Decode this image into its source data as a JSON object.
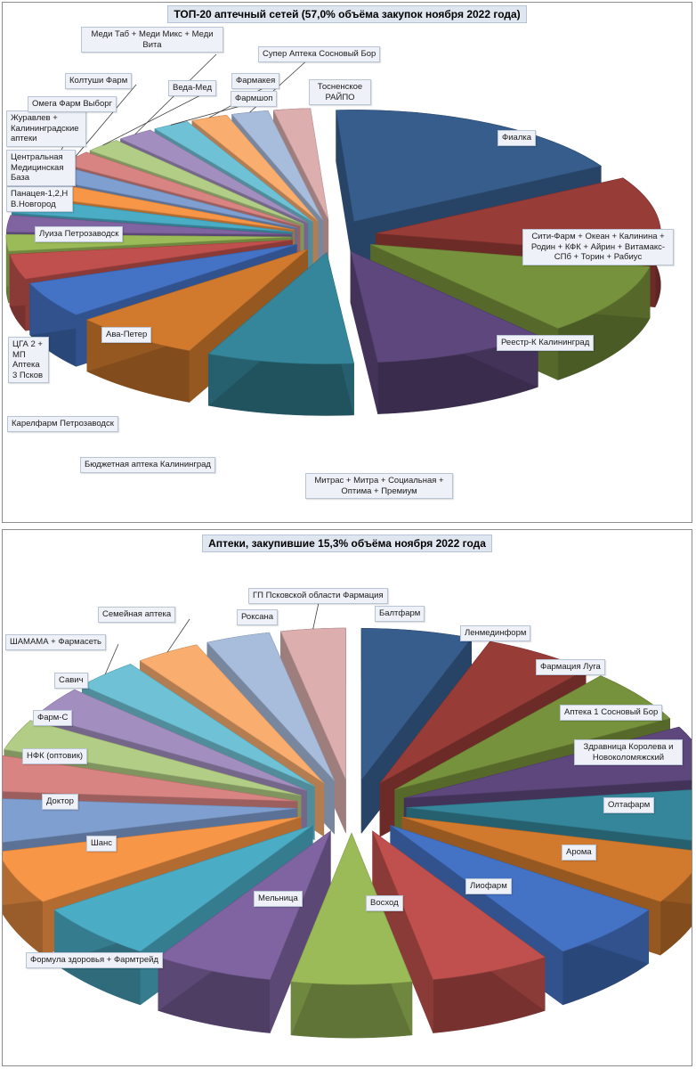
{
  "charts": [
    {
      "title": "ТОП-20 аптечный сетей (57,0% объёма закупок ноября 2022 года)",
      "chart_data": {
        "type": "pie",
        "style": "3d-exploded",
        "slices": [
          {
            "label": "Фиалка",
            "value": 17.0,
            "color": "#365d8c"
          },
          {
            "label": "Сити-Фарм + Океан + Калинина + Родин + КФК + Айрин + Витамакс-СПб + Торин + Рабиус",
            "value": 11.0,
            "color": "#983c37"
          },
          {
            "label": "Реестр-К Калининград",
            "value": 10.0,
            "color": "#77923c"
          },
          {
            "label": "Митрас + Митра + Социальная + Оптима + Премиум",
            "value": 9.5,
            "color": "#5d477c"
          },
          {
            "label": "Бюджетная аптека Калининград",
            "value": 8.0,
            "color": "#35869a"
          },
          {
            "label": "Карелфарм Петрозаводск",
            "value": 7.0,
            "color": "#d17a2e"
          },
          {
            "label": "Ава-Петер",
            "value": 5.0,
            "color": "#4472c4"
          },
          {
            "label": "ЦГА 2 + МП Аптека 3 Псков",
            "value": 3.5,
            "color": "#c0504d"
          },
          {
            "label": "Луиза Петрозаводск",
            "value": 2.3,
            "color": "#9bbb59"
          },
          {
            "label": "Панацея-1,2,Н В.Новгород",
            "value": 2.3,
            "color": "#8064a2"
          },
          {
            "label": "Центральная Медицинская База",
            "value": 2.2,
            "color": "#4bacc6"
          },
          {
            "label": "Журавлев + Калининградские аптеки",
            "value": 2.2,
            "color": "#f79646"
          },
          {
            "label": "Омега Фарм Выборг",
            "value": 2.0,
            "color": "#7f9fd0"
          },
          {
            "label": "Колтуши Фарм",
            "value": 2.0,
            "color": "#d88482"
          },
          {
            "label": "Веда-Мед",
            "value": 2.0,
            "color": "#b2cd85"
          },
          {
            "label": "Меди Таб + Меди Микс + Меди Вита",
            "value": 2.0,
            "color": "#a28fc0"
          },
          {
            "label": "Фармшоп",
            "value": 2.0,
            "color": "#6fc2d6"
          },
          {
            "label": "Фармакея",
            "value": 2.0,
            "color": "#f9ae70"
          },
          {
            "label": "Супер Аптека Сосновый Бор",
            "value": 2.0,
            "color": "#a8bcdc"
          },
          {
            "label": "Тосненское РАЙПО",
            "value": 2.0,
            "color": "#dcaeae"
          }
        ]
      }
    },
    {
      "title": "Аптеки, закупившие 15,3% объёма ноября 2022 года",
      "chart_data": {
        "type": "pie",
        "style": "3d-exploded",
        "slices": [
          {
            "label": "Балтфарм",
            "value": 6.0,
            "color": "#365d8c"
          },
          {
            "label": "Ленмединформ",
            "value": 6.0,
            "color": "#983c37"
          },
          {
            "label": "Фармация Луга",
            "value": 6.0,
            "color": "#77923c"
          },
          {
            "label": "Аптека 1 Сосновый Бор",
            "value": 6.0,
            "color": "#5d477c"
          },
          {
            "label": "Здравница Королева и Новоколомяжский",
            "value": 6.0,
            "color": "#35869a"
          },
          {
            "label": "Олтафарм",
            "value": 6.0,
            "color": "#d17a2e"
          },
          {
            "label": "Арома",
            "value": 6.5,
            "color": "#4472c4"
          },
          {
            "label": "Лиофарм",
            "value": 6.5,
            "color": "#c0504d"
          },
          {
            "label": "Восход",
            "value": 6.5,
            "color": "#9bbb59"
          },
          {
            "label": "Мельница",
            "value": 6.5,
            "color": "#8064a2"
          },
          {
            "label": "Формула здоровья + Фармтрейд",
            "value": 6.5,
            "color": "#4bacc6"
          },
          {
            "label": "Шанс",
            "value": 6.0,
            "color": "#f79646"
          },
          {
            "label": "Доктор",
            "value": 5.0,
            "color": "#7f9fd0"
          },
          {
            "label": "НФК (оптовик)",
            "value": 4.0,
            "color": "#d88482"
          },
          {
            "label": "Фарм-С",
            "value": 3.5,
            "color": "#b2cd85"
          },
          {
            "label": "Савич",
            "value": 3.5,
            "color": "#a28fc0"
          },
          {
            "label": "ШАМАМА + Фармасеть",
            "value": 3.5,
            "color": "#6fc2d6"
          },
          {
            "label": "Семейная аптека",
            "value": 3.5,
            "color": "#f9ae70"
          },
          {
            "label": "Роксана",
            "value": 3.5,
            "color": "#a8bcdc"
          },
          {
            "label": "ГП Псковской области Фармация",
            "value": 3.5,
            "color": "#dcaeae"
          }
        ]
      }
    }
  ]
}
